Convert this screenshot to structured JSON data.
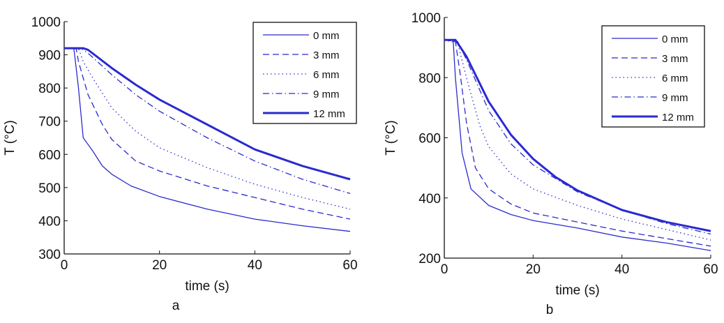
{
  "chart_data": [
    {
      "type": "line",
      "panel_label": "a",
      "xlabel": "time (s)",
      "ylabel": "T (°C)",
      "xlim": [
        0,
        60
      ],
      "ylim": [
        300,
        1000
      ],
      "xticks": [
        "0",
        "20",
        "40",
        "60"
      ],
      "yticks": [
        "300",
        "400",
        "500",
        "600",
        "700",
        "800",
        "900",
        "1000"
      ],
      "grid": false,
      "legend_position": "top-right",
      "color": "#2a2ad0",
      "series": [
        {
          "name": "0 mm",
          "style": "solid",
          "x": [
            0,
            2,
            2.2,
            3,
            4,
            6,
            8,
            10,
            14,
            20,
            30,
            40,
            50,
            60
          ],
          "y": [
            920,
            920,
            900,
            800,
            650,
            610,
            565,
            540,
            505,
            473,
            435,
            405,
            385,
            368
          ]
        },
        {
          "name": "3 mm",
          "style": "dashed",
          "x": [
            0,
            2.5,
            3,
            5,
            8,
            10,
            15,
            20,
            30,
            40,
            50,
            60
          ],
          "y": [
            920,
            920,
            880,
            780,
            690,
            645,
            580,
            550,
            505,
            470,
            435,
            405
          ]
        },
        {
          "name": "6 mm",
          "style": "dotted",
          "x": [
            0,
            3,
            4,
            6,
            10,
            15,
            20,
            30,
            40,
            50,
            60
          ],
          "y": [
            920,
            920,
            880,
            830,
            740,
            670,
            620,
            560,
            510,
            470,
            435
          ]
        },
        {
          "name": "9 mm",
          "style": "dashdot",
          "x": [
            0,
            3.5,
            5,
            10,
            15,
            20,
            30,
            40,
            50,
            60
          ],
          "y": [
            920,
            920,
            905,
            840,
            780,
            730,
            650,
            580,
            525,
            482
          ]
        },
        {
          "name": "12 mm",
          "style": "thick",
          "x": [
            0,
            4,
            5,
            10,
            15,
            20,
            30,
            40,
            50,
            60
          ],
          "y": [
            920,
            920,
            915,
            860,
            810,
            765,
            690,
            615,
            565,
            525
          ]
        }
      ]
    },
    {
      "type": "line",
      "panel_label": "b",
      "xlabel": "time (s)",
      "ylabel": "T (°C)",
      "xlim": [
        0,
        60
      ],
      "ylim": [
        200,
        1000
      ],
      "xticks": [
        "0",
        "20",
        "40",
        "60"
      ],
      "yticks": [
        "200",
        "400",
        "600",
        "800",
        "1000"
      ],
      "grid": false,
      "legend_position": "top-right",
      "color": "#2a2ad0",
      "series": [
        {
          "name": "0 mm",
          "style": "solid",
          "x": [
            0,
            2,
            2.5,
            4,
            6,
            10,
            15,
            20,
            30,
            40,
            50,
            60
          ],
          "y": [
            925,
            925,
            800,
            550,
            430,
            375,
            345,
            325,
            300,
            270,
            250,
            225
          ]
        },
        {
          "name": "3 mm",
          "style": "dashed",
          "x": [
            0,
            2.5,
            3.5,
            5,
            7,
            10,
            15,
            20,
            30,
            40,
            50,
            60
          ],
          "y": [
            925,
            920,
            820,
            650,
            500,
            430,
            380,
            350,
            320,
            290,
            265,
            240
          ]
        },
        {
          "name": "6 mm",
          "style": "dotted",
          "x": [
            0,
            3,
            5,
            8,
            10,
            15,
            20,
            30,
            40,
            50,
            60
          ],
          "y": [
            925,
            915,
            800,
            640,
            570,
            480,
            430,
            375,
            330,
            295,
            260
          ]
        },
        {
          "name": "9 mm",
          "style": "dashdot",
          "x": [
            0,
            3,
            5,
            10,
            15,
            20,
            30,
            40,
            50,
            60
          ],
          "y": [
            925,
            920,
            860,
            690,
            580,
            510,
            420,
            360,
            315,
            280
          ]
        },
        {
          "name": "12 mm",
          "style": "thick",
          "x": [
            0,
            2.5,
            3,
            5,
            10,
            15,
            20,
            25,
            30,
            40,
            50,
            60
          ],
          "y": [
            925,
            925,
            915,
            870,
            720,
            610,
            530,
            470,
            425,
            360,
            320,
            290
          ]
        }
      ]
    }
  ]
}
